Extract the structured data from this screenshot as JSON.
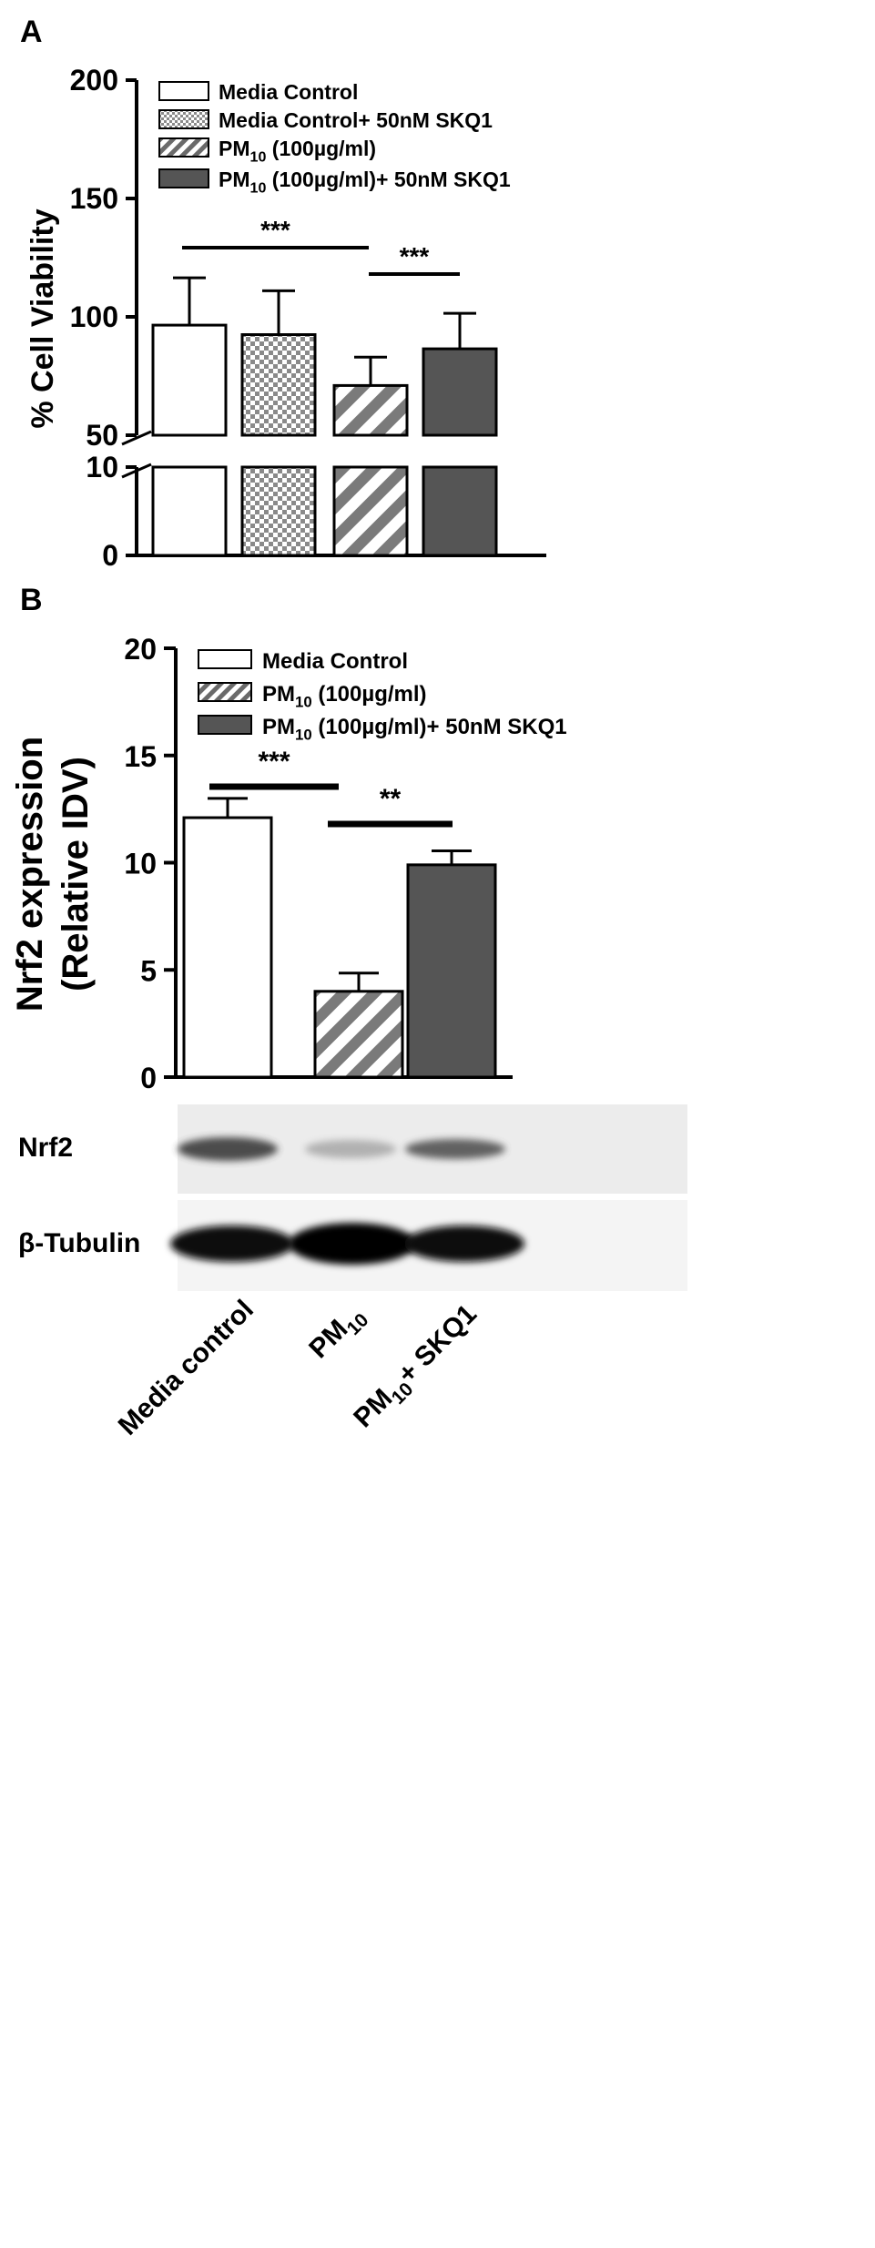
{
  "panel_a": {
    "letter": "A",
    "chart_data": {
      "type": "bar",
      "ylabel": "% Cell Viability",
      "axis_break": true,
      "ylim_lower": [
        0,
        10
      ],
      "ylim_upper": [
        50,
        200
      ],
      "yticks_lower": [
        "0",
        "10"
      ],
      "yticks_upper": [
        "50",
        "100",
        "150",
        "200"
      ],
      "categories": [
        "Media Control",
        "Media Control+ 50nM SKQ1",
        "PM10 (100µg/ml)",
        "PM10 (100µg/ml)+ 50nM SKQ1"
      ],
      "values": [
        96.5,
        92.5,
        71,
        86.5
      ],
      "errors": [
        20,
        18.5,
        12,
        15
      ],
      "significance": [
        {
          "from": 0,
          "to": 2,
          "label": "***"
        },
        {
          "from": 2,
          "to": 3,
          "label": "***"
        }
      ]
    },
    "legend": [
      {
        "pre": "Media Control",
        "sub": "",
        "post": "",
        "pattern": "white"
      },
      {
        "pre": "Media Control+ 50nM SKQ1",
        "sub": "",
        "post": "",
        "pattern": "check"
      },
      {
        "pre": "PM",
        "sub": "10",
        "post": " (100µg/ml)",
        "pattern": "hatch"
      },
      {
        "pre": "PM",
        "sub": "10",
        "post": " (100µg/ml)+ 50nM SKQ1",
        "pattern": "dark"
      }
    ]
  },
  "panel_b": {
    "letter": "B",
    "chart_data": {
      "type": "bar",
      "ylabel_line1": "Nrf2 expression",
      "ylabel_line2": "(Relative IDV)",
      "ylim": [
        0,
        20
      ],
      "yticks": [
        "0",
        "5",
        "10",
        "15",
        "20"
      ],
      "categories": [
        "Media control",
        "PM10",
        "PM10+ SKQ1"
      ],
      "values": [
        12.1,
        4.0,
        9.9
      ],
      "errors": [
        0.9,
        0.85,
        0.65
      ],
      "significance": [
        {
          "from": 0,
          "to": 1,
          "label": "***"
        },
        {
          "from": 1,
          "to": 2,
          "label": "**"
        }
      ]
    },
    "legend": [
      {
        "pre": "Media Control",
        "sub": "",
        "post": "",
        "pattern": "white"
      },
      {
        "pre": "PM",
        "sub": "10",
        "post": " (100µg/ml)",
        "pattern": "hatch"
      },
      {
        "pre": "PM",
        "sub": "10",
        "post": " (100µg/ml)+ 50nM SKQ1",
        "pattern": "dark"
      }
    ],
    "blot_labels": {
      "nrf2": "Nrf2",
      "tubulin": "β-Tubulin"
    },
    "lane_labels": [
      {
        "pre": "Media control",
        "sub": "",
        "post": ""
      },
      {
        "pre": "PM",
        "sub": "10",
        "post": ""
      },
      {
        "pre": "PM",
        "sub": "10",
        "post": "+ SKQ1"
      }
    ]
  }
}
